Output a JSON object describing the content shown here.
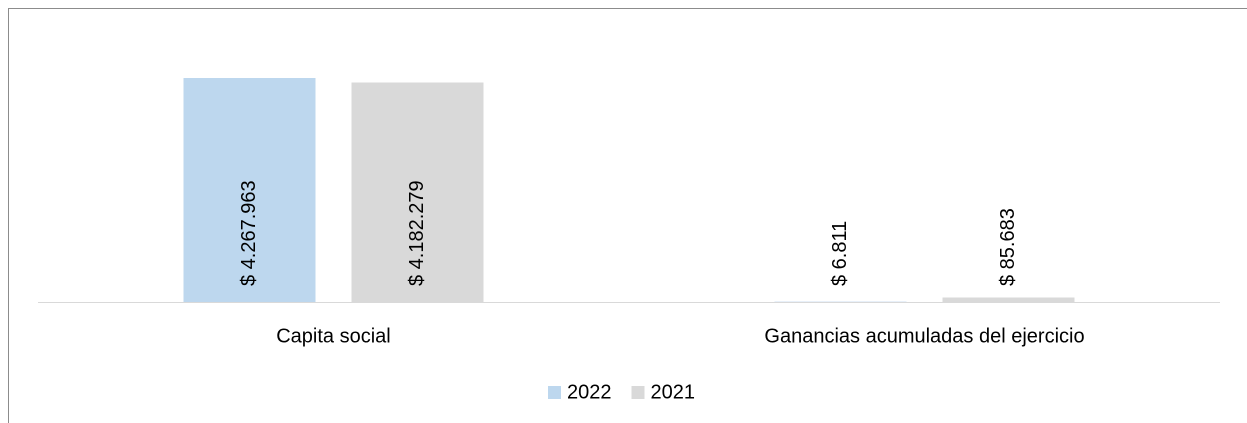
{
  "chart_data": {
    "type": "bar",
    "categories": [
      "Capita social",
      "Ganancias acumuladas del ejercicio"
    ],
    "series": [
      {
        "name": "2022",
        "color": "#bdd7ee",
        "values": [
          4267963,
          6811
        ],
        "value_labels": [
          "$ 4.267.963",
          "$ 6.811"
        ]
      },
      {
        "name": "2021",
        "color": "#d9d9d9",
        "values": [
          4182279,
          85683
        ],
        "value_labels": [
          "$ 4.182.279",
          "$ 85.683"
        ]
      }
    ],
    "legend": "bottom"
  }
}
